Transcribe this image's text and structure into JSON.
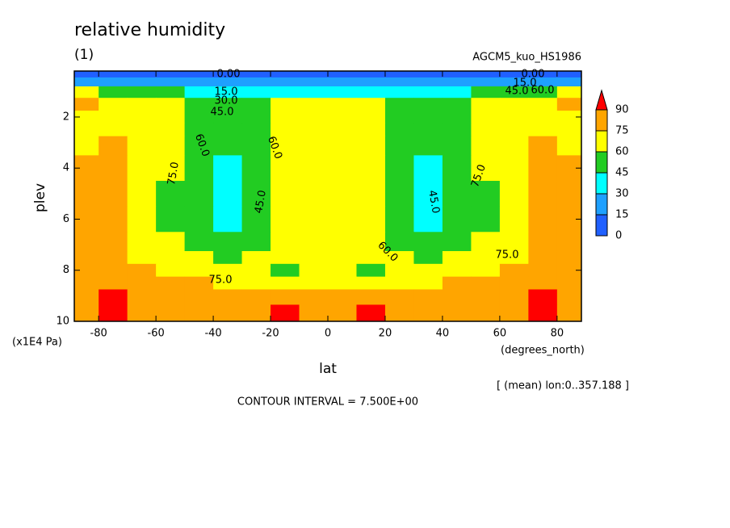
{
  "chart_data": {
    "type": "contour",
    "title": "relative humidity",
    "subtitle": "(1)",
    "experiment": "AGCM5_kuo_HS1986",
    "xlabel": "lat",
    "x_units": "(degrees_north)",
    "ylabel": "plev",
    "y_units": "(x1E4 Pa)",
    "note": "[ (mean) lon:0..357.188 ]",
    "contour_interval": "CONTOUR INTERVAL = 7.500E+00",
    "xlim": [
      -88.5,
      88.5
    ],
    "xticks": [
      -80,
      -60,
      -40,
      -20,
      0,
      20,
      40,
      60,
      80
    ],
    "ylim": [
      0.2,
      10
    ],
    "y_inverted": true,
    "yticks": [
      2,
      4,
      6,
      8,
      10
    ],
    "levels": [
      0,
      15,
      30,
      45,
      60,
      75,
      90
    ],
    "colors": [
      "#2060ff",
      "#1ea0ff",
      "#00ffff",
      "#22cc22",
      "#ffff00",
      "#ffa500",
      "#ff0000"
    ],
    "x": [
      -85,
      -75,
      -65,
      -55,
      -45,
      -35,
      -25,
      -15,
      -5,
      5,
      15,
      25,
      35,
      45,
      55,
      65,
      75,
      85
    ],
    "y": [
      0.3,
      0.6,
      1.0,
      1.5,
      2,
      2.5,
      3,
      4,
      5,
      6,
      7,
      7.5,
      8,
      8.5,
      9,
      9.7
    ],
    "z": [
      [
        5,
        5,
        5,
        5,
        5,
        5,
        5,
        5,
        5,
        5,
        5,
        5,
        5,
        5,
        5,
        5,
        5,
        5
      ],
      [
        25,
        22,
        20,
        20,
        20,
        20,
        20,
        20,
        20,
        20,
        20,
        20,
        20,
        20,
        20,
        20,
        22,
        25
      ],
      [
        65,
        55,
        50,
        45,
        42,
        40,
        40,
        40,
        40,
        40,
        40,
        40,
        40,
        42,
        45,
        50,
        55,
        65
      ],
      [
        78,
        70,
        65,
        62,
        55,
        50,
        50,
        62,
        62,
        62,
        62,
        50,
        50,
        55,
        62,
        65,
        70,
        78
      ],
      [
        70,
        72,
        68,
        65,
        58,
        50,
        52,
        64,
        65,
        65,
        64,
        52,
        50,
        58,
        65,
        68,
        72,
        70
      ],
      [
        72,
        72,
        70,
        65,
        55,
        48,
        50,
        62,
        68,
        68,
        62,
        50,
        48,
        55,
        65,
        70,
        72,
        72
      ],
      [
        74,
        75,
        72,
        62,
        50,
        45,
        55,
        65,
        68,
        68,
        65,
        55,
        45,
        50,
        62,
        72,
        75,
        74
      ],
      [
        78,
        78,
        72,
        60,
        48,
        42,
        55,
        65,
        66,
        66,
        65,
        55,
        42,
        48,
        60,
        72,
        78,
        78
      ],
      [
        78,
        80,
        72,
        58,
        46,
        38,
        50,
        66,
        64,
        64,
        66,
        50,
        38,
        46,
        58,
        72,
        80,
        78
      ],
      [
        80,
        80,
        73,
        58,
        46,
        40,
        50,
        64,
        62,
        62,
        64,
        50,
        40,
        46,
        58,
        73,
        80,
        80
      ],
      [
        80,
        78,
        73,
        65,
        55,
        48,
        55,
        68,
        68,
        68,
        68,
        55,
        48,
        55,
        65,
        73,
        78,
        80
      ],
      [
        79,
        77,
        74,
        68,
        60,
        58,
        62,
        66,
        68,
        68,
        66,
        62,
        58,
        60,
        68,
        74,
        77,
        79
      ],
      [
        80,
        79,
        77,
        74,
        70,
        67,
        65,
        58,
        64,
        64,
        58,
        65,
        67,
        70,
        74,
        77,
        79,
        80
      ],
      [
        82,
        88,
        80,
        78,
        76,
        74,
        72,
        70,
        72,
        72,
        70,
        72,
        74,
        76,
        78,
        80,
        88,
        82
      ],
      [
        84,
        92,
        82,
        80,
        80,
        78,
        78,
        86,
        78,
        78,
        86,
        78,
        78,
        80,
        80,
        82,
        92,
        84
      ],
      [
        85,
        95,
        84,
        82,
        82,
        80,
        80,
        90,
        80,
        80,
        90,
        80,
        80,
        82,
        82,
        84,
        95,
        85
      ]
    ],
    "contour_labels": [
      {
        "value": 0,
        "label": "0.00"
      },
      {
        "value": 15,
        "label": "15.0"
      },
      {
        "value": 30,
        "label": "30.0"
      },
      {
        "value": 45,
        "label": "45.0"
      },
      {
        "value": 0,
        "label": "0.00"
      },
      {
        "value": 15,
        "label": "15.0"
      },
      {
        "value": 45,
        "label": "45.0"
      },
      {
        "value": 60,
        "label": "60.0"
      },
      {
        "value": 60,
        "label": "60.0"
      },
      {
        "value": 60,
        "label": "60.0"
      },
      {
        "value": 75,
        "label": "75.0"
      },
      {
        "value": 45,
        "label": "45.0"
      },
      {
        "value": 45,
        "label": "45.0"
      },
      {
        "value": 75,
        "label": "75.0"
      },
      {
        "value": 60,
        "label": "60.0"
      },
      {
        "value": 75,
        "label": "75.0"
      },
      {
        "value": 75,
        "label": "75.0"
      }
    ]
  }
}
